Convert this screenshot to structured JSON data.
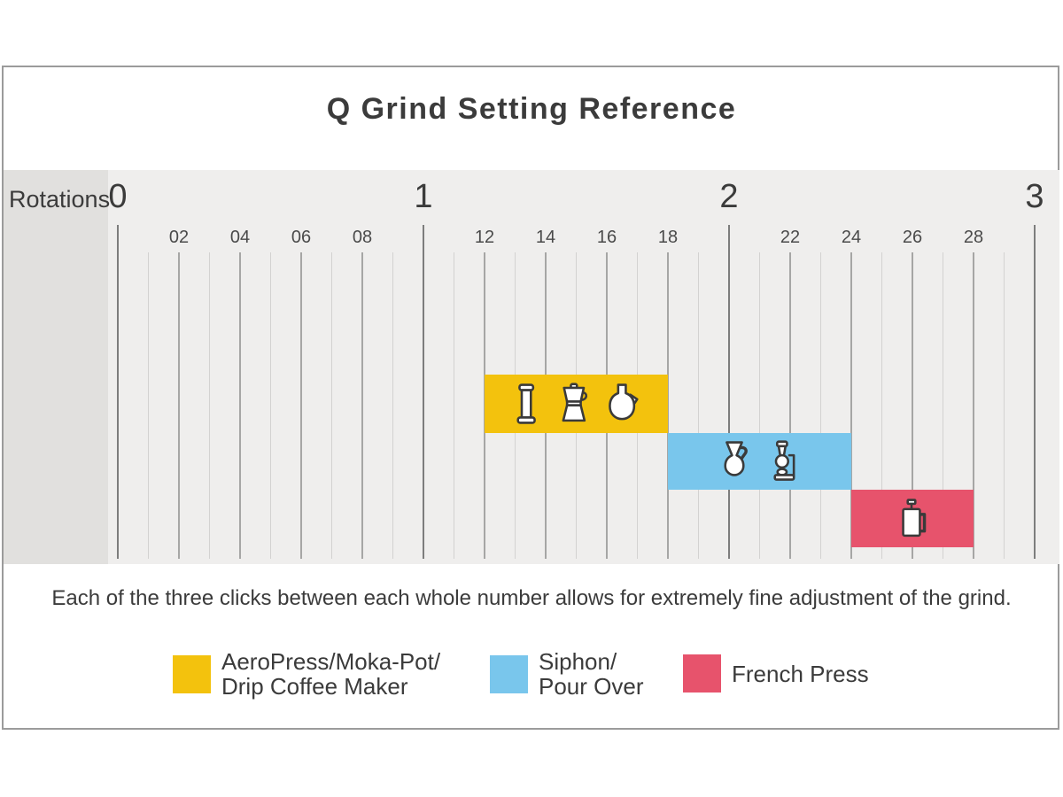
{
  "title": "Q Grind Setting Reference",
  "axis_label": "Rotations",
  "caption": "Each of the three clicks between each whole number allows for extremely fine adjustment of the grind.",
  "colors": {
    "chart_bg": "#efeeed",
    "axis_box_bg": "#e1e0de",
    "text": "#3b3b3b",
    "frame_border": "#9b9b9b",
    "gridline_major": "#7d7d7d",
    "gridline_even": "#a6a6a5",
    "gridline_odd": "#d3d2d1",
    "yellow": "#f3c20d",
    "blue": "#79c6ec",
    "red": "#e7536c"
  },
  "chart_data": {
    "type": "bar",
    "subtype": "horizontal-range",
    "title": "Q Grind Setting Reference",
    "xlabel": "Rotations",
    "x_range": [
      0,
      3
    ],
    "grid": true,
    "major_ticks": [
      0,
      1,
      2,
      3
    ],
    "major_tick_labels": [
      "0",
      "1",
      "2",
      "3"
    ],
    "minor_tick_step": 0.1,
    "labeled_minor_ticks": [
      {
        "label": "02",
        "value": 0.2
      },
      {
        "label": "04",
        "value": 0.4
      },
      {
        "label": "06",
        "value": 0.6
      },
      {
        "label": "08",
        "value": 0.8
      },
      {
        "label": "12",
        "value": 1.2
      },
      {
        "label": "14",
        "value": 1.4
      },
      {
        "label": "16",
        "value": 1.6
      },
      {
        "label": "18",
        "value": 1.8
      },
      {
        "label": "22",
        "value": 2.2
      },
      {
        "label": "24",
        "value": 2.4
      },
      {
        "label": "26",
        "value": 2.6
      },
      {
        "label": "28",
        "value": 2.8
      }
    ],
    "series": [
      {
        "name": "AeroPress/Moka-Pot/Drip Coffee Maker",
        "start": 1.2,
        "end": 1.8,
        "row": 0,
        "color": "#f3c20d",
        "icons": [
          "aeropress-icon",
          "moka-pot-icon",
          "drip-coffee-maker-icon"
        ]
      },
      {
        "name": "Siphon/Pour Over",
        "start": 1.8,
        "end": 2.4,
        "row": 1,
        "color": "#79c6ec",
        "icons": [
          "pour-over-icon",
          "siphon-icon"
        ]
      },
      {
        "name": "French Press",
        "start": 2.4,
        "end": 2.8,
        "row": 2,
        "color": "#e7536c",
        "icons": [
          "french-press-icon"
        ]
      }
    ]
  },
  "legend": {
    "items": [
      {
        "color": "#f3c20d",
        "lines": [
          "AeroPress/Moka-Pot/",
          "Drip Coffee Maker"
        ]
      },
      {
        "color": "#79c6ec",
        "lines": [
          "Siphon/",
          "Pour Over"
        ]
      },
      {
        "color": "#e7536c",
        "lines": [
          "French Press",
          ""
        ]
      }
    ]
  }
}
